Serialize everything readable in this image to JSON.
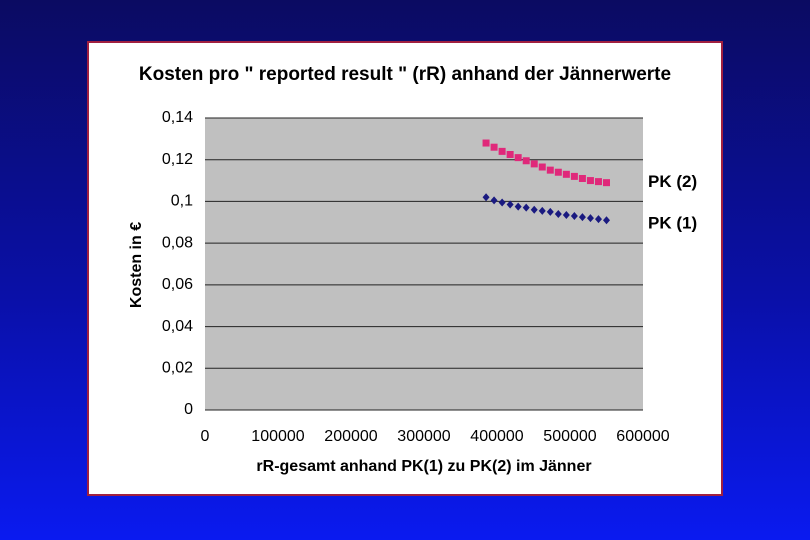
{
  "chart_data": {
    "type": "scatter",
    "title": "Kosten pro \" reported result \" (rR) anhand der Jännerwerte",
    "x_label": "rR-gesamt anhand PK(1) zu PK(2) im Jänner",
    "y_label": "Kosten in €",
    "x": [
      385000,
      396000,
      407000,
      418000,
      429000,
      440000,
      451000,
      462000,
      473000,
      484000,
      495000,
      506000,
      517000,
      528000,
      539000,
      550000
    ],
    "series": [
      {
        "name": "PK (2)",
        "color": "#e0287a",
        "marker": "square",
        "values": [
          0.128,
          0.126,
          0.124,
          0.1225,
          0.121,
          0.1195,
          0.118,
          0.1165,
          0.115,
          0.114,
          0.113,
          0.112,
          0.111,
          0.11,
          0.1095,
          0.109
        ]
      },
      {
        "name": "PK (1)",
        "color": "#1a1a80",
        "marker": "diamond",
        "values": [
          0.102,
          0.1005,
          0.0995,
          0.0985,
          0.0975,
          0.097,
          0.096,
          0.0955,
          0.095,
          0.094,
          0.0935,
          0.093,
          0.0925,
          0.092,
          0.0915,
          0.091
        ]
      }
    ],
    "xlim": [
      0,
      600000
    ],
    "xticks": [
      0,
      100000,
      200000,
      300000,
      400000,
      500000,
      600000
    ],
    "ylim": [
      0,
      0.14
    ],
    "yticks": [
      0,
      {
        "value": 0.02,
        "label": "0,02"
      },
      {
        "value": 0.04,
        "label": "0,04"
      },
      {
        "value": 0.06,
        "label": "0,06"
      },
      {
        "value": 0.08,
        "label": "0,08"
      },
      {
        "value": 0.1,
        "label": "0,1"
      },
      {
        "value": 0.12,
        "label": "0,12"
      },
      {
        "value": 0.14,
        "label": "0,14"
      }
    ],
    "grid": true
  }
}
